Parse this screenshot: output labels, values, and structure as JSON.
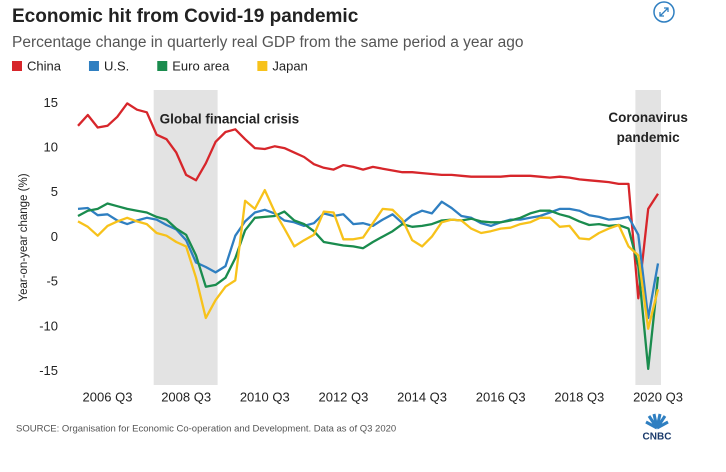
{
  "chart_data": {
    "type": "line",
    "title": "Economic hit from Covid-19 pandemic",
    "subtitle": "Percentage change in quarterly real GDP from the same period a year ago",
    "y_label": "Year-on-year change (%)",
    "source": "SOURCE: Organisation for Economic Co-operation and Development. Data as of Q3 2020",
    "logo": "CNBC",
    "annotations": [
      "Global financial crisis",
      "Coronavirus pandemic"
    ],
    "categories": [
      null,
      null,
      null,
      "2006 Q3",
      null,
      null,
      null,
      null,
      null,
      null,
      null,
      "2008 Q3",
      null,
      null,
      null,
      null,
      null,
      null,
      null,
      "2010 Q3",
      null,
      null,
      null,
      null,
      null,
      null,
      null,
      "2012 Q3",
      null,
      null,
      null,
      null,
      null,
      null,
      null,
      "2014 Q3",
      null,
      null,
      null,
      null,
      null,
      null,
      null,
      "2016 Q3",
      null,
      null,
      null,
      null,
      null,
      null,
      null,
      "2018 Q3",
      null,
      null,
      null,
      null,
      null,
      null,
      null,
      "2020 Q3"
    ],
    "series": [
      {
        "name": "China",
        "color": "#d7262b",
        "values": [
          12.5,
          13.7,
          12.3,
          12.5,
          13.5,
          15,
          14.3,
          14,
          11.5,
          11,
          9.5,
          7,
          6.4,
          8.3,
          10.7,
          11.8,
          12.1,
          11,
          10,
          9.9,
          10.2,
          10,
          9.5,
          9,
          8.2,
          7.8,
          7.6,
          8.1,
          7.9,
          7.6,
          7.9,
          7.7,
          7.5,
          7.3,
          7.3,
          7.2,
          7.1,
          7,
          7,
          6.9,
          6.8,
          6.8,
          6.8,
          6.8,
          6.9,
          6.9,
          6.9,
          6.8,
          6.7,
          6.8,
          6.7,
          6.5,
          6.4,
          6.3,
          6.2,
          6,
          6,
          -6.8,
          3.2,
          4.9
        ]
      },
      {
        "name": "U.S.",
        "color": "#2f7fc1",
        "values": [
          3.2,
          3.3,
          2.5,
          2.6,
          1.9,
          1.5,
          1.9,
          2.2,
          2,
          1.4,
          0.9,
          -0.3,
          -2.8,
          -3.3,
          -3.9,
          -3.2,
          0.2,
          1.8,
          2.8,
          3.1,
          2.7,
          1.9,
          1.7,
          1.3,
          1.6,
          2.7,
          2.4,
          2.6,
          1.5,
          1.6,
          1.3,
          2,
          2.6,
          1.6,
          2.5,
          3,
          2.7,
          4,
          3.3,
          2.4,
          2.2,
          1.6,
          1.3,
          1.7,
          2,
          2,
          2.2,
          2.4,
          2.8,
          3.2,
          3.2,
          3,
          2.5,
          2.3,
          2,
          2.1,
          2.3,
          0.3,
          -9,
          -2.9
        ]
      },
      {
        "name": "Euro area",
        "color": "#1a8c4e",
        "values": [
          2.4,
          3,
          3.2,
          3.8,
          3.5,
          3.2,
          3,
          2.8,
          2.3,
          2,
          1,
          0.3,
          -2,
          -5.5,
          -5.3,
          -4.5,
          -2.3,
          0.8,
          2.2,
          2.3,
          2.4,
          2.9,
          1.9,
          1.5,
          0.7,
          -0.5,
          -0.7,
          -0.9,
          -1,
          -1.2,
          -0.5,
          0.1,
          0.7,
          1.5,
          1.2,
          1.3,
          1.5,
          1.9,
          2,
          1.9,
          2.1,
          1.8,
          1.7,
          1.7,
          1.9,
          2.2,
          2.7,
          3,
          3,
          2.6,
          2.3,
          1.8,
          1.4,
          1.5,
          1.3,
          1.4,
          1,
          -3.2,
          -14.7,
          -4.4
        ]
      },
      {
        "name": "Japan",
        "color": "#f7c21b",
        "values": [
          1.8,
          1.2,
          0.2,
          1.3,
          1.8,
          2.2,
          1.8,
          1.5,
          0.5,
          0.2,
          -0.5,
          -1,
          -4.5,
          -9,
          -7,
          -5.5,
          -4.8,
          4.1,
          3.2,
          5.3,
          2.9,
          1,
          -1,
          -0.3,
          0.3,
          2.9,
          2.8,
          -0.2,
          -0.2,
          0,
          1.6,
          3.2,
          3.1,
          2,
          -0.3,
          -1,
          0.1,
          1.7,
          2,
          1.9,
          1,
          0.5,
          0.7,
          1,
          1.1,
          1.5,
          1.7,
          2.2,
          2.2,
          1.2,
          1.3,
          -0.1,
          -0.2,
          0.5,
          1,
          1.4,
          -1,
          -2,
          -10.2,
          -5.8
        ]
      }
    ],
    "ylim": [
      -16.5,
      16.5
    ],
    "yticks": [
      -15,
      -10,
      -5,
      0,
      5,
      10,
      15
    ],
    "grid": false,
    "legend": "top-left"
  }
}
